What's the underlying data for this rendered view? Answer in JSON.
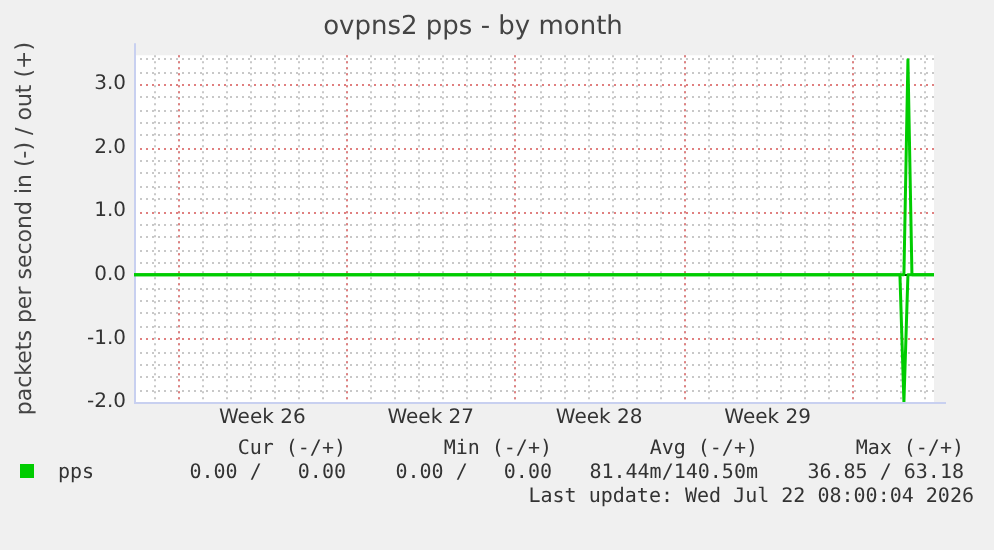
{
  "chart_data": {
    "type": "line",
    "title": "ovpns2 pps - by month",
    "ylabel": "packets per second in (-) / out (+)",
    "xlim": [
      "2026-06-20T04:00",
      "2026-07-23T10:00"
    ],
    "xticks": [
      {
        "value": "2026-06-22",
        "label": null
      },
      {
        "value": "2026-06-25T12:00",
        "label": "Week 26"
      },
      {
        "value": "2026-06-29",
        "label": null
      },
      {
        "value": "2026-07-02T12:00",
        "label": "Week 27"
      },
      {
        "value": "2026-07-06",
        "label": null
      },
      {
        "value": "2026-07-09T12:00",
        "label": "Week 28"
      },
      {
        "value": "2026-07-13",
        "label": null
      },
      {
        "value": "2026-07-16T12:00",
        "label": "Week 29"
      },
      {
        "value": "2026-07-20",
        "label": null
      }
    ],
    "ylim": [
      -2,
      3.45
    ],
    "yticks": [
      {
        "value": -2,
        "label": "-2.0"
      },
      {
        "value": -1,
        "label": "-1.0"
      },
      {
        "value": 0,
        "label": "0.0"
      },
      {
        "value": 1,
        "label": "1.0"
      },
      {
        "value": 2,
        "label": "2.0"
      },
      {
        "value": 3,
        "label": "3.0"
      }
    ],
    "grid": true,
    "legend": "bottom",
    "series": [
      {
        "name": "pps",
        "color": "#00cc00",
        "x": [
          "2026-06-20T04:00",
          "2026-07-22T04:00",
          "2026-07-22T08:00",
          "2026-07-22T12:00",
          "2026-07-23T10:00"
        ],
        "values": [
          0,
          0,
          3.38,
          0,
          0
        ]
      },
      {
        "color": "#00cc00",
        "x": [
          "2026-06-20T04:00",
          "2026-07-22T00:00",
          "2026-07-22T04:00",
          "2026-07-22T08:00",
          "2026-07-23T10:00"
        ],
        "values": [
          0,
          0,
          -2,
          0,
          0
        ]
      }
    ],
    "annotations": [
      "Cur (-/+)",
      "Min (-/+)",
      "Avg (-/+)",
      "Max (-/+)",
      "0.00 /   0.00",
      "0.00 /   0.00",
      "81.44m/140.50m",
      "36.85 / 63.18",
      "Last update: Wed Jul 22 08:00:04 2026"
    ]
  }
}
